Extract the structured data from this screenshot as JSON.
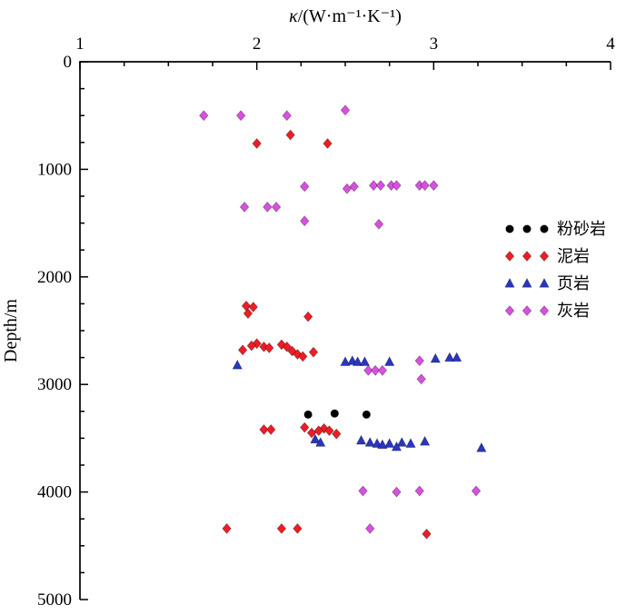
{
  "chart_data": {
    "type": "scatter",
    "title": {
      "symbol": "κ",
      "rest": "/(W·m⁻¹·K⁻¹)"
    },
    "ylabel": "Depth/m",
    "x_axis": {
      "min": 1,
      "max": 4,
      "major_ticks": [
        1,
        2,
        3,
        4
      ],
      "minors_between_majors": 3,
      "position": "top"
    },
    "y_axis": {
      "min": 0,
      "max": 5000,
      "major_ticks": [
        0,
        1000,
        2000,
        3000,
        4000,
        5000
      ],
      "minors_between_majors": 3,
      "direction": "increasing-downward"
    },
    "grid": false,
    "legend": {
      "position": "middle-right",
      "markers_per_entry": 3
    },
    "series": [
      {
        "id": "fenshayan",
        "name": "粉砂岩",
        "marker": "circle",
        "color": "#000000",
        "points": [
          [
            2.29,
            3280
          ],
          [
            2.44,
            3270
          ],
          [
            2.62,
            3280
          ]
        ]
      },
      {
        "id": "niyan",
        "name": "泥岩",
        "marker": "diamond",
        "color": "#ee1c25",
        "points": [
          [
            2.0,
            760
          ],
          [
            2.19,
            680
          ],
          [
            2.4,
            760
          ],
          [
            1.94,
            2270
          ],
          [
            1.98,
            2280
          ],
          [
            1.95,
            2340
          ],
          [
            2.29,
            2370
          ],
          [
            2.0,
            2620
          ],
          [
            2.14,
            2630
          ],
          [
            1.97,
            2640
          ],
          [
            2.04,
            2650
          ],
          [
            2.17,
            2650
          ],
          [
            2.07,
            2660
          ],
          [
            1.92,
            2680
          ],
          [
            2.2,
            2690
          ],
          [
            2.32,
            2700
          ],
          [
            2.23,
            2720
          ],
          [
            2.26,
            2740
          ],
          [
            2.27,
            3400
          ],
          [
            2.38,
            3410
          ],
          [
            2.04,
            3420
          ],
          [
            2.08,
            3420
          ],
          [
            2.35,
            3430
          ],
          [
            2.41,
            3430
          ],
          [
            2.31,
            3450
          ],
          [
            2.45,
            3460
          ],
          [
            1.83,
            4340
          ],
          [
            2.14,
            4340
          ],
          [
            2.23,
            4340
          ],
          [
            2.96,
            4390
          ]
        ]
      },
      {
        "id": "yeyan",
        "name": "页岩",
        "marker": "triangle",
        "color": "#2a35c0",
        "points": [
          [
            1.89,
            2820
          ],
          [
            2.54,
            2780
          ],
          [
            2.5,
            2790
          ],
          [
            2.57,
            2790
          ],
          [
            2.61,
            2790
          ],
          [
            2.75,
            2790
          ],
          [
            3.09,
            2750
          ],
          [
            3.13,
            2750
          ],
          [
            3.01,
            2760
          ],
          [
            2.33,
            3510
          ],
          [
            2.59,
            3520
          ],
          [
            2.95,
            3530
          ],
          [
            2.36,
            3540
          ],
          [
            2.64,
            3540
          ],
          [
            2.82,
            3540
          ],
          [
            2.68,
            3550
          ],
          [
            2.75,
            3550
          ],
          [
            2.87,
            3550
          ],
          [
            2.71,
            3560
          ],
          [
            2.79,
            3580
          ],
          [
            3.27,
            3590
          ]
        ]
      },
      {
        "id": "huiyan",
        "name": "灰岩",
        "marker": "diamond",
        "color": "#d94fe0",
        "points": [
          [
            2.5,
            450
          ],
          [
            1.7,
            500
          ],
          [
            1.91,
            500
          ],
          [
            2.17,
            500
          ],
          [
            2.66,
            1150
          ],
          [
            2.7,
            1150
          ],
          [
            2.76,
            1150
          ],
          [
            2.79,
            1150
          ],
          [
            2.92,
            1150
          ],
          [
            2.95,
            1150
          ],
          [
            3.0,
            1150
          ],
          [
            2.27,
            1160
          ],
          [
            2.55,
            1160
          ],
          [
            2.51,
            1180
          ],
          [
            1.93,
            1350
          ],
          [
            2.06,
            1350
          ],
          [
            2.11,
            1350
          ],
          [
            2.27,
            1480
          ],
          [
            2.69,
            1510
          ],
          [
            2.92,
            2780
          ],
          [
            2.63,
            2870
          ],
          [
            2.67,
            2870
          ],
          [
            2.71,
            2870
          ],
          [
            2.93,
            2950
          ],
          [
            2.6,
            3990
          ],
          [
            2.92,
            3990
          ],
          [
            3.24,
            3990
          ],
          [
            2.79,
            4000
          ],
          [
            2.64,
            4340
          ]
        ]
      }
    ]
  }
}
